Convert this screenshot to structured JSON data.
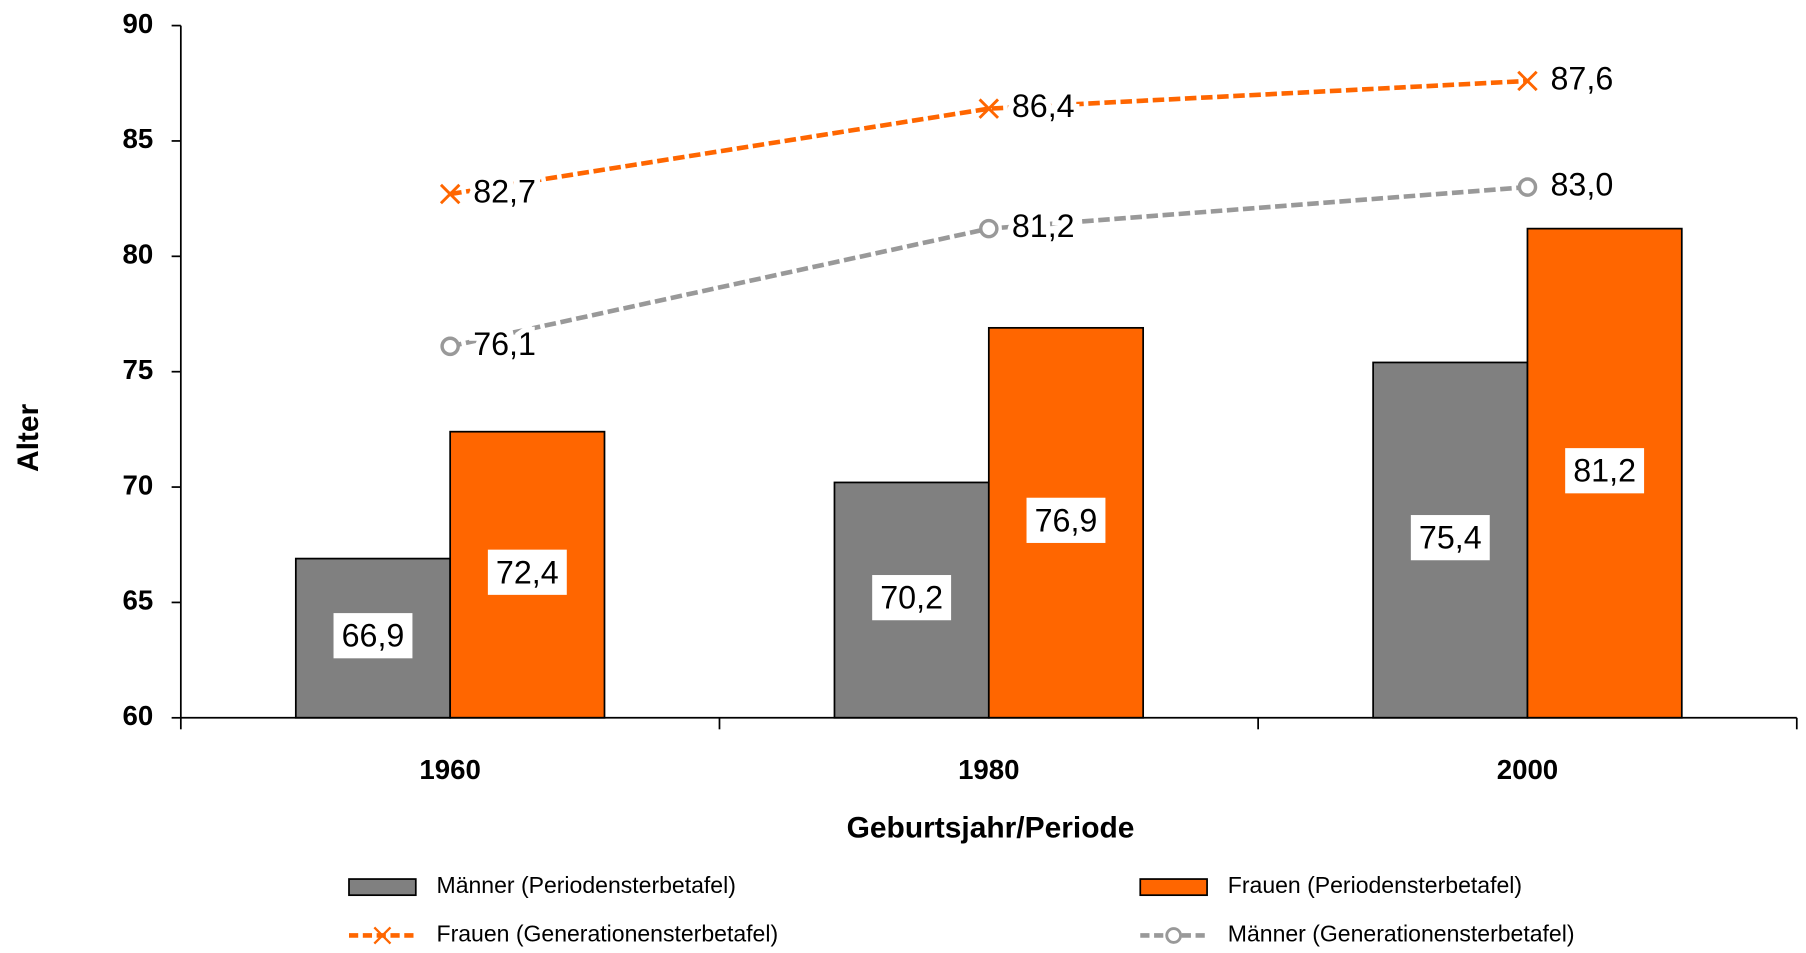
{
  "chart_data": {
    "type": "bar",
    "xlabel": "Geburtsjahr/Periode",
    "ylabel": "Alter",
    "categories": [
      "1960",
      "1980",
      "2000"
    ],
    "ylim": [
      60,
      90
    ],
    "yticks": [
      60,
      65,
      70,
      75,
      80,
      85,
      90
    ],
    "grid": false,
    "legend": "bottom",
    "series": [
      {
        "name": "Männer (Periodensterbetafel)",
        "type": "bar",
        "color": "#808080",
        "values": [
          66.9,
          70.2,
          75.4
        ],
        "value_labels": [
          "66,9",
          "70,2",
          "75,4"
        ]
      },
      {
        "name": "Frauen (Periodensterbetafel)",
        "type": "bar",
        "color": "#ff6600",
        "values": [
          72.4,
          76.9,
          81.2
        ],
        "value_labels": [
          "72,4",
          "76,9",
          "81,2"
        ]
      },
      {
        "name": "Frauen (Generationensterbetafel)",
        "type": "line",
        "marker": "x",
        "color": "#ff6600",
        "values": [
          82.7,
          86.4,
          87.6
        ],
        "value_labels": [
          "82,7",
          "86,4",
          "87,6"
        ]
      },
      {
        "name": "Männer (Generationensterbetafel)",
        "type": "line",
        "marker": "circle",
        "color": "#999999",
        "values": [
          76.1,
          81.2,
          83.0
        ],
        "value_labels": [
          "76,1",
          "81,2",
          "83,0"
        ]
      }
    ]
  }
}
